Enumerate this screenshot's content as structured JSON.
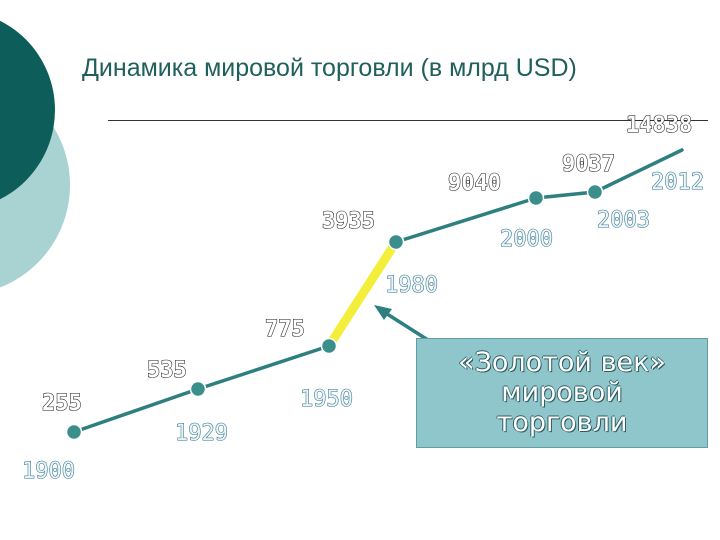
{
  "title": "Динамика мировой торговли (в млрд USD)",
  "callout": {
    "line1": "«Золотой век»",
    "line2": "мировой",
    "line3": "торговли"
  },
  "colors": {
    "line": "#2e7f80",
    "marker": "#3a8f8c",
    "golden_segment": "#f2ee3a",
    "decor_dark": "#0d5e5b",
    "decor_light": "#a9d2d3",
    "value_label": "#1a1a1a",
    "year_label": "#2a6f80"
  },
  "chart_data": {
    "type": "line",
    "title": "Динамика мировой торговли (в млрд USD)",
    "xlabel": "",
    "ylabel": "",
    "grid": false,
    "legend": "none",
    "points": [
      {
        "year": "1900",
        "value": 255
      },
      {
        "year": "1929",
        "value": 535
      },
      {
        "year": "1950",
        "value": 775
      },
      {
        "year": "1980",
        "value": 3935
      },
      {
        "year": "2000",
        "value": 9040
      },
      {
        "year": "2003",
        "value": 9037
      },
      {
        "year": "2012",
        "value": 14838
      }
    ],
    "highlight": {
      "from": "1950",
      "to": "1980"
    }
  }
}
